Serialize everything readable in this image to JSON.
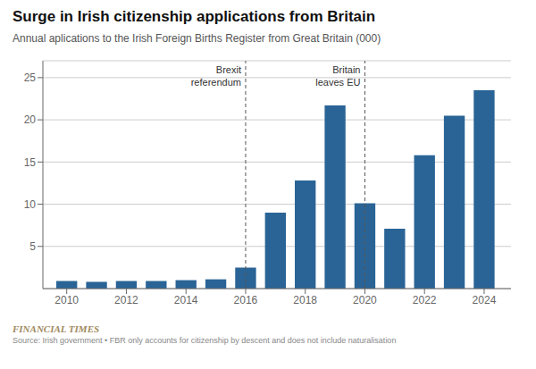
{
  "chart_data": {
    "type": "bar",
    "title": "Surge in Irish citizenship applications from Britain",
    "subtitle": "Annual aplications to the Irish Foreign Births Register from Great Britain (000)",
    "footer": "FINANCIAL TIMES",
    "source": "Source: Irish government • FBR only accounts for citizenship by descent and does not include naturalisation",
    "x": [
      2010,
      2011,
      2012,
      2013,
      2014,
      2015,
      2016,
      2017,
      2018,
      2019,
      2020,
      2021,
      2022,
      2023,
      2024
    ],
    "values": [
      0.9,
      0.8,
      0.9,
      0.9,
      1.0,
      1.1,
      2.5,
      9.0,
      12.8,
      21.7,
      10.1,
      7.1,
      15.8,
      20.5,
      23.5
    ],
    "color": "#2a6496",
    "xlim": [
      2009.2,
      2024.9
    ],
    "xticks": [
      2010,
      2012,
      2014,
      2016,
      2018,
      2020,
      2022,
      2024
    ],
    "ylim": [
      0,
      27
    ],
    "yticks": [
      5,
      10,
      15,
      20,
      25
    ],
    "grid": true,
    "annotations": [
      {
        "x": 2016,
        "text": "Brexit\nreferendum",
        "line_style": "dashed"
      },
      {
        "x": 2020,
        "text": "Britain\nleaves EU",
        "line_style": "dashed"
      }
    ]
  }
}
